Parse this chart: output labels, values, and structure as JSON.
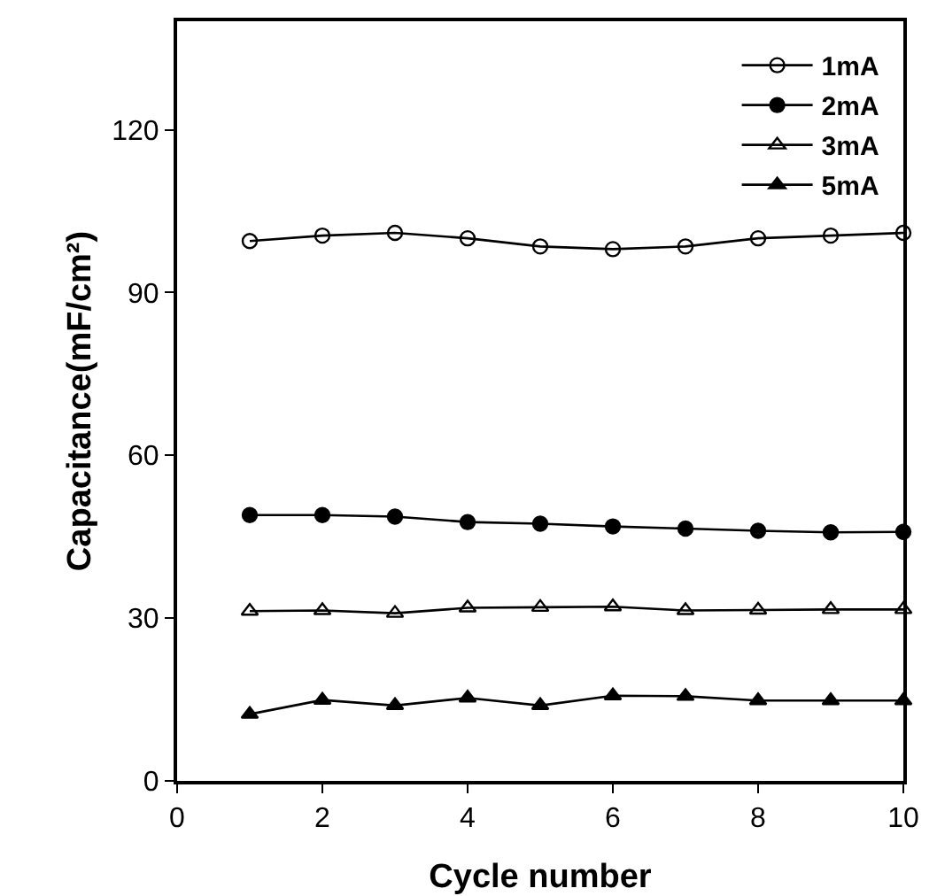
{
  "chart_data": {
    "type": "line",
    "xlabel": "Cycle number",
    "ylabel": "Capacitance(mF/cm²)",
    "x": [
      1,
      2,
      3,
      4,
      5,
      6,
      7,
      8,
      9,
      10
    ],
    "xlim": [
      0,
      10
    ],
    "xticks": [
      0,
      2,
      4,
      6,
      8,
      10
    ],
    "ylim": [
      0,
      140
    ],
    "yticks": [
      0,
      30,
      60,
      90,
      120
    ],
    "grid": false,
    "legend": "top right",
    "line_style": "solid",
    "series": [
      {
        "name": "1mA",
        "color": "#000000",
        "marker": "circle-open",
        "values": [
          99.5,
          100.5,
          101,
          100,
          98.5,
          98,
          98.5,
          100,
          100.5,
          101
        ]
      },
      {
        "name": "2mA",
        "color": "#000000",
        "marker": "circle",
        "values": [
          49,
          49,
          48.7,
          47.7,
          47.4,
          46.9,
          46.5,
          46.1,
          45.8,
          45.9
        ]
      },
      {
        "name": "3mA",
        "color": "#000000",
        "marker": "triangle-open",
        "values": [
          31.3,
          31.4,
          30.9,
          31.9,
          32,
          32.1,
          31.4,
          31.5,
          31.6,
          31.6
        ]
      },
      {
        "name": "5mA",
        "color": "#000000",
        "marker": "triangle",
        "values": [
          12.3,
          14.9,
          13.9,
          15.3,
          13.9,
          15.7,
          15.6,
          14.8,
          14.8,
          14.8
        ]
      }
    ]
  }
}
